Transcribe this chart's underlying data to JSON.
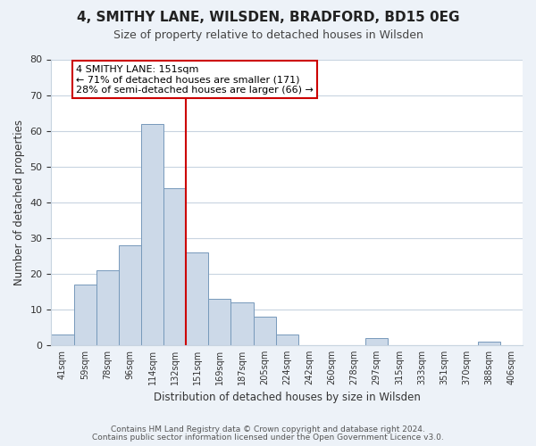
{
  "title": "4, SMITHY LANE, WILSDEN, BRADFORD, BD15 0EG",
  "subtitle": "Size of property relative to detached houses in Wilsden",
  "xlabel": "Distribution of detached houses by size in Wilsden",
  "ylabel": "Number of detached properties",
  "bar_labels": [
    "41sqm",
    "59sqm",
    "78sqm",
    "96sqm",
    "114sqm",
    "132sqm",
    "151sqm",
    "169sqm",
    "187sqm",
    "205sqm",
    "224sqm",
    "242sqm",
    "260sqm",
    "278sqm",
    "297sqm",
    "315sqm",
    "333sqm",
    "351sqm",
    "370sqm",
    "388sqm",
    "406sqm"
  ],
  "bar_heights": [
    3,
    17,
    21,
    28,
    62,
    44,
    26,
    13,
    12,
    8,
    3,
    0,
    0,
    0,
    2,
    0,
    0,
    0,
    0,
    1,
    0
  ],
  "bar_color": "#ccd9e8",
  "bar_edge_color": "#7799bb",
  "vline_color": "#cc0000",
  "annotation_text": "4 SMITHY LANE: 151sqm\n← 71% of detached houses are smaller (171)\n28% of semi-detached houses are larger (66) →",
  "annotation_box_color": "#ffffff",
  "annotation_box_edge": "#cc0000",
  "ylim": [
    0,
    80
  ],
  "yticks": [
    0,
    10,
    20,
    30,
    40,
    50,
    60,
    70,
    80
  ],
  "footer_line1": "Contains HM Land Registry data © Crown copyright and database right 2024.",
  "footer_line2": "Contains public sector information licensed under the Open Government Licence v3.0.",
  "bg_color": "#edf2f8",
  "plot_bg_color": "#ffffff",
  "grid_color": "#c8d4e0"
}
